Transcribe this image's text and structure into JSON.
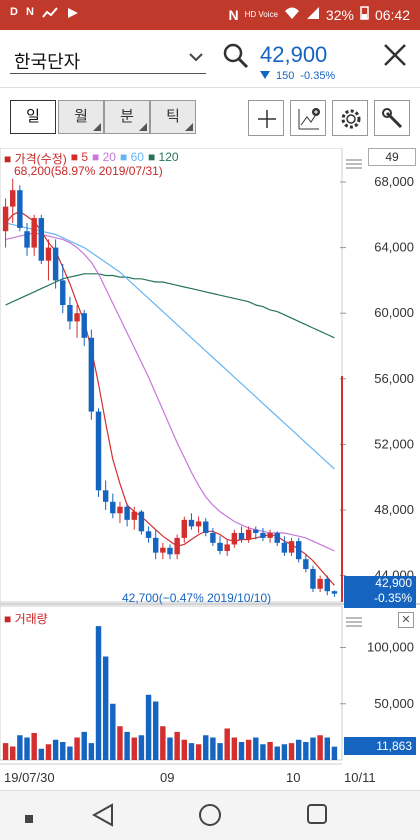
{
  "status_bar": {
    "left_icons": [
      "D",
      "N",
      "chart",
      "play"
    ],
    "battery": "32%",
    "time": "06:42",
    "hd_voice": "HD Voice"
  },
  "header": {
    "stock_name": "한국단자",
    "price": "42,900",
    "change": "150",
    "change_pct": "-0.35%",
    "price_color": "#1565c0"
  },
  "periods": [
    {
      "label": "일",
      "active": true
    },
    {
      "label": "월",
      "active": false
    },
    {
      "label": "분",
      "active": false
    },
    {
      "label": "틱",
      "active": false
    }
  ],
  "tools": [
    "crosshair-icon",
    "add-indicator-icon",
    "settings-icon",
    "wrench-icon"
  ],
  "legend": {
    "price_label": "가격(수정)",
    "ma": [
      {
        "period": "5",
        "color": "#d32f2f"
      },
      {
        "period": "20",
        "color": "#c678dd"
      },
      {
        "period": "60",
        "color": "#64b5f6"
      },
      {
        "period": "120",
        "color": "#26735a"
      }
    ]
  },
  "period_value": "49",
  "annotations": {
    "high": "68,200(58.97% 2019/07/31)",
    "low": "42,700(−0.47% 2019/10/10)"
  },
  "current_tag": {
    "price": "42,900",
    "pct": "-0.35%"
  },
  "volume": {
    "label": "거래량",
    "last": "11,863"
  },
  "chart_data": [
    {
      "type": "candlestick",
      "title": "",
      "ylim": [
        40000,
        70000
      ],
      "yticks": [
        "68,000",
        "64,000",
        "60,000",
        "56,000",
        "52,000",
        "48,000",
        "44,000"
      ],
      "xticks": [
        "19/07/30",
        "09",
        "10",
        "10/11"
      ],
      "ohlc": [
        [
          65000,
          67000,
          64000,
          66500
        ],
        [
          66500,
          68200,
          65500,
          67500
        ],
        [
          67500,
          67800,
          65000,
          65200
        ],
        [
          65000,
          65500,
          63500,
          64000
        ],
        [
          64000,
          66000,
          63500,
          65800
        ],
        [
          65800,
          66000,
          63000,
          63200
        ],
        [
          63200,
          64500,
          62000,
          64000
        ],
        [
          64000,
          64500,
          61500,
          62000
        ],
        [
          62000,
          63000,
          60000,
          60500
        ],
        [
          60500,
          61000,
          59000,
          59500
        ],
        [
          59500,
          60500,
          58500,
          60000
        ],
        [
          60000,
          60200,
          58000,
          58500
        ],
        [
          58500,
          59000,
          53500,
          54000
        ],
        [
          54000,
          54200,
          48800,
          49200
        ],
        [
          49200,
          49800,
          48000,
          48500
        ],
        [
          48500,
          49000,
          47500,
          47800
        ],
        [
          47800,
          48500,
          47200,
          48200
        ],
        [
          48200,
          48400,
          47000,
          47400
        ],
        [
          47400,
          48200,
          46800,
          47900
        ],
        [
          47900,
          48000,
          46500,
          46700
        ],
        [
          46700,
          47000,
          46000,
          46300
        ],
        [
          46300,
          46800,
          45000,
          45400
        ],
        [
          45400,
          46000,
          45000,
          45700
        ],
        [
          45700,
          45900,
          45000,
          45300
        ],
        [
          45300,
          46500,
          45000,
          46300
        ],
        [
          46300,
          47600,
          46000,
          47400
        ],
        [
          47400,
          47800,
          46800,
          47000
        ],
        [
          47000,
          47600,
          46600,
          47300
        ],
        [
          47300,
          47500,
          46400,
          46600
        ],
        [
          46600,
          46900,
          45800,
          46000
        ],
        [
          46000,
          46400,
          45300,
          45500
        ],
        [
          45500,
          46200,
          45200,
          45900
        ],
        [
          45900,
          46800,
          45700,
          46600
        ],
        [
          46600,
          47000,
          46000,
          46200
        ],
        [
          46200,
          47000,
          46000,
          46800
        ],
        [
          46800,
          47000,
          46200,
          46600
        ],
        [
          46600,
          46900,
          46100,
          46300
        ],
        [
          46300,
          46800,
          46000,
          46600
        ],
        [
          46600,
          46700,
          45800,
          46000
        ],
        [
          46000,
          46400,
          45200,
          45400
        ],
        [
          45400,
          46300,
          45200,
          46100
        ],
        [
          46100,
          46300,
          44800,
          45000
        ],
        [
          45000,
          45300,
          44200,
          44400
        ],
        [
          44400,
          44600,
          43000,
          43200
        ],
        [
          43200,
          44000,
          43000,
          43800
        ],
        [
          43800,
          44000,
          42800,
          43050
        ],
        [
          43050,
          43100,
          42700,
          42900
        ]
      ],
      "ma5": [
        65500,
        66000,
        66200,
        65900,
        65600,
        65000,
        64300,
        63800,
        62800,
        61800,
        60600,
        59500,
        57800,
        55700,
        53300,
        51100,
        49600,
        48300,
        47900,
        47600,
        47200,
        46800,
        46400,
        46100,
        45800,
        45900,
        46200,
        46500,
        46700,
        46700,
        46500,
        46200,
        46100,
        46200,
        46200,
        46300,
        46400,
        46500,
        46400,
        46100,
        45900,
        45600,
        45300,
        44900,
        44400,
        43900,
        43400
      ],
      "ma20": [
        64500,
        64600,
        64700,
        64800,
        64900,
        64800,
        64700,
        64600,
        64500,
        64300,
        64000,
        63600,
        63100,
        62400,
        61500,
        60600,
        59700,
        58800,
        57900,
        57000,
        56100,
        55100,
        54100,
        53100,
        52100,
        51200,
        50300,
        49500,
        48800,
        48300,
        47900,
        47600,
        47300,
        47100,
        46900,
        46800,
        46700,
        46600,
        46600,
        46600,
        46500,
        46400,
        46300,
        46100,
        45900,
        45700,
        45500
      ],
      "ma60": [
        65500,
        65400,
        65300,
        65200,
        65100,
        65000,
        64900,
        64800,
        64600,
        64400,
        64200,
        64000,
        63700,
        63400,
        63100,
        62800,
        62500,
        62100,
        61700,
        61300,
        60900,
        60500,
        60100,
        59700,
        59300,
        58900,
        58500,
        58100,
        57700,
        57300,
        56900,
        56500,
        56100,
        55700,
        55300,
        54900,
        54500,
        54100,
        53700,
        53300,
        52900,
        52500,
        52100,
        51700,
        51300,
        50900,
        50500
      ],
      "ma120": [
        60500,
        60700,
        60900,
        61100,
        61300,
        61500,
        61700,
        61900,
        62100,
        62200,
        62300,
        62400,
        62400,
        62400,
        62300,
        62300,
        62200,
        62200,
        62100,
        62100,
        62000,
        61900,
        61900,
        61800,
        61700,
        61600,
        61500,
        61400,
        61300,
        61200,
        61100,
        61000,
        60900,
        60800,
        60700,
        60500,
        60400,
        60200,
        60100,
        59900,
        59700,
        59500,
        59300,
        59100,
        58900,
        58700,
        58500
      ]
    },
    {
      "type": "bar",
      "title": "거래량",
      "ylim": [
        0,
        130000
      ],
      "yticks": [
        "100,000",
        "50,000"
      ],
      "values": [
        15000,
        12000,
        22000,
        20000,
        24000,
        10000,
        14000,
        18000,
        16000,
        12000,
        20000,
        25000,
        15000,
        119000,
        92000,
        50000,
        30000,
        25000,
        20000,
        22000,
        58000,
        52000,
        30000,
        20000,
        25000,
        18000,
        15000,
        14000,
        22000,
        20000,
        15000,
        28000,
        20000,
        16000,
        18000,
        20000,
        14000,
        16000,
        12000,
        14000,
        15000,
        18000,
        16000,
        20000,
        22000,
        20000,
        11863
      ],
      "up": [
        true,
        true,
        false,
        false,
        true,
        false,
        true,
        false,
        false,
        false,
        true,
        false,
        false,
        false,
        false,
        false,
        true,
        false,
        true,
        false,
        false,
        false,
        true,
        false,
        true,
        true,
        false,
        true,
        false,
        false,
        false,
        true,
        true,
        false,
        true,
        false,
        false,
        true,
        false,
        false,
        true,
        false,
        false,
        false,
        true,
        false,
        false
      ]
    }
  ]
}
